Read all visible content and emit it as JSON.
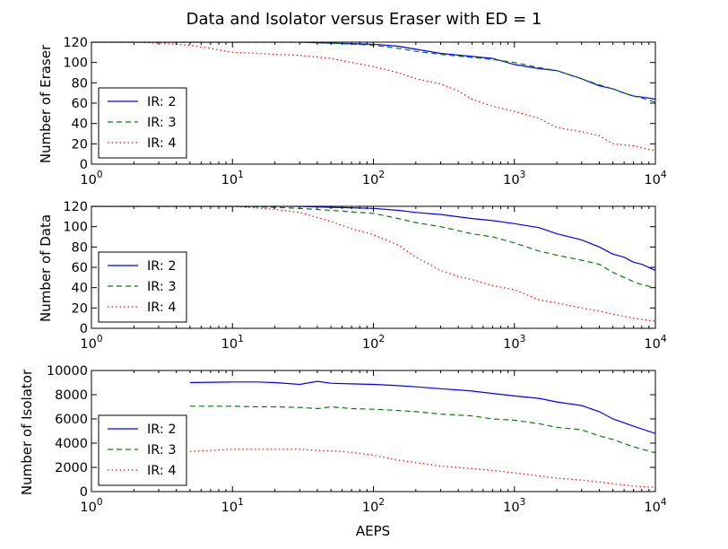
{
  "chart_data": {
    "title": "Data and Isolator versus Eraser with ED = 1",
    "colors": {
      "IR: 2": "#0000ff",
      "IR: 3": "#008000",
      "IR: 4": "#ff0000"
    },
    "styles": {
      "IR: 2": "solid",
      "IR: 3": "dashed",
      "IR: 4": "dotted"
    },
    "subplots": [
      {
        "type": "line",
        "xscale": "log",
        "xlim": [
          1,
          10000
        ],
        "xticks": [
          1,
          10,
          100,
          1000,
          10000
        ],
        "xlabel": "",
        "ylabel": "Number of Eraser",
        "ylim": [
          0,
          120
        ],
        "yticks": [
          0,
          20,
          40,
          60,
          80,
          100,
          120
        ],
        "legend": "lower-left",
        "series": [
          {
            "name": "IR: 2",
            "x": [
              1,
              5,
              10,
              20,
              30,
              50,
              100,
              150,
              200,
              300,
              500,
              700,
              1000,
              1500,
              2000,
              3000,
              4000,
              5000,
              6000,
              7000,
              8000,
              10000
            ],
            "y": [
              120,
              120,
              120,
              120,
              120,
              119,
              118,
              116,
              113,
              109,
              106,
              104,
              98,
              94,
              92,
              84,
              77,
              74,
              70,
              67,
              66,
              64
            ]
          },
          {
            "name": "IR: 3",
            "x": [
              1,
              5,
              10,
              20,
              30,
              50,
              100,
              150,
              200,
              300,
              500,
              700,
              1000,
              1500,
              2000,
              3000,
              4000,
              5000,
              6000,
              7000,
              8000,
              10000
            ],
            "y": [
              120,
              120,
              120,
              120,
              120,
              119,
              117,
              114,
              111,
              108,
              105,
              103,
              100,
              95,
              92,
              84,
              78,
              74,
              70,
              67,
              65,
              61
            ]
          },
          {
            "name": "IR: 4",
            "x": [
              1,
              2,
              3,
              5,
              7,
              10,
              15,
              20,
              30,
              50,
              70,
              100,
              150,
              200,
              300,
              400,
              500,
              700,
              1000,
              1500,
              2000,
              3000,
              4000,
              5000,
              7000,
              10000
            ],
            "y": [
              120,
              120,
              119,
              117,
              114,
              110,
              109,
              108,
              107,
              104,
              100,
              96,
              90,
              84,
              79,
              72,
              64,
              57,
              52,
              45,
              36,
              32,
              28,
              20,
              18,
              13
            ]
          }
        ]
      },
      {
        "type": "line",
        "xscale": "log",
        "xlim": [
          1,
          10000
        ],
        "xticks": [
          1,
          10,
          100,
          1000,
          10000
        ],
        "xlabel": "",
        "ylabel": "Number of Data",
        "ylim": [
          0,
          120
        ],
        "yticks": [
          0,
          20,
          40,
          60,
          80,
          100,
          120
        ],
        "legend": "lower-left",
        "series": [
          {
            "name": "IR: 2",
            "x": [
              1,
              5,
              10,
              20,
              30,
              50,
              100,
              150,
              200,
              300,
              500,
              700,
              1000,
              1500,
              2000,
              3000,
              4000,
              5000,
              6000,
              7000,
              8000,
              10000
            ],
            "y": [
              120,
              120,
              120,
              120,
              120,
              119,
              118,
              116,
              114,
              112,
              108,
              106,
              103,
              99,
              93,
              87,
              80,
              73,
              70,
              65,
              63,
              57
            ]
          },
          {
            "name": "IR: 3",
            "x": [
              1,
              5,
              10,
              20,
              30,
              50,
              100,
              150,
              200,
              300,
              500,
              700,
              1000,
              1500,
              2000,
              3000,
              4000,
              5000,
              6000,
              7000,
              8000,
              10000
            ],
            "y": [
              120,
              120,
              120,
              119,
              118,
              116,
              113,
              108,
              104,
              100,
              93,
              90,
              84,
              76,
              72,
              67,
              63,
              55,
              50,
              46,
              43,
              40
            ]
          },
          {
            "name": "IR: 4",
            "x": [
              1,
              5,
              10,
              20,
              30,
              50,
              70,
              100,
              150,
              200,
              300,
              400,
              500,
              700,
              1000,
              1500,
              2000,
              3000,
              4000,
              5000,
              7000,
              10000
            ],
            "y": [
              120,
              120,
              120,
              117,
              114,
              105,
              98,
              92,
              82,
              70,
              57,
              51,
              48,
              42,
              38,
              28,
              25,
              20,
              17,
              14,
              10,
              7
            ]
          }
        ]
      },
      {
        "type": "line",
        "xscale": "log",
        "xlim": [
          1,
          10000
        ],
        "xticks": [
          1,
          10,
          100,
          1000,
          10000
        ],
        "xlabel": "AEPS",
        "ylabel": "Number of Isolator",
        "ylim": [
          0,
          10000
        ],
        "yticks": [
          0,
          2000,
          4000,
          6000,
          8000,
          10000
        ],
        "legend": "lower-left",
        "series": [
          {
            "name": "IR: 2",
            "x": [
              5,
              10,
              15,
              20,
              30,
              40,
              50,
              70,
              100,
              150,
              200,
              300,
              500,
              700,
              1000,
              1500,
              2000,
              3000,
              4000,
              5000,
              7000,
              10000
            ],
            "y": [
              9000,
              9050,
              9050,
              9000,
              8850,
              9100,
              8950,
              8900,
              8850,
              8750,
              8650,
              8500,
              8300,
              8100,
              7900,
              7700,
              7400,
              7100,
              6600,
              6000,
              5400,
              4800
            ]
          },
          {
            "name": "IR: 3",
            "x": [
              5,
              10,
              15,
              20,
              30,
              40,
              50,
              70,
              100,
              150,
              200,
              300,
              500,
              700,
              1000,
              1500,
              2000,
              3000,
              4000,
              5000,
              7000,
              10000
            ],
            "y": [
              7050,
              7050,
              7000,
              7000,
              6950,
              6850,
              7000,
              6850,
              6800,
              6700,
              6600,
              6400,
              6250,
              6000,
              5900,
              5600,
              5300,
              5100,
              4600,
              4300,
              3700,
              3200
            ]
          },
          {
            "name": "IR: 4",
            "x": [
              5,
              10,
              15,
              20,
              30,
              40,
              50,
              70,
              100,
              150,
              200,
              300,
              500,
              700,
              1000,
              1500,
              2000,
              3000,
              4000,
              5000,
              7000,
              10000
            ],
            "y": [
              3300,
              3500,
              3500,
              3500,
              3500,
              3400,
              3350,
              3250,
              3000,
              2600,
              2400,
              2100,
              1900,
              1750,
              1550,
              1300,
              1100,
              950,
              800,
              650,
              450,
              350
            ]
          }
        ]
      }
    ]
  }
}
